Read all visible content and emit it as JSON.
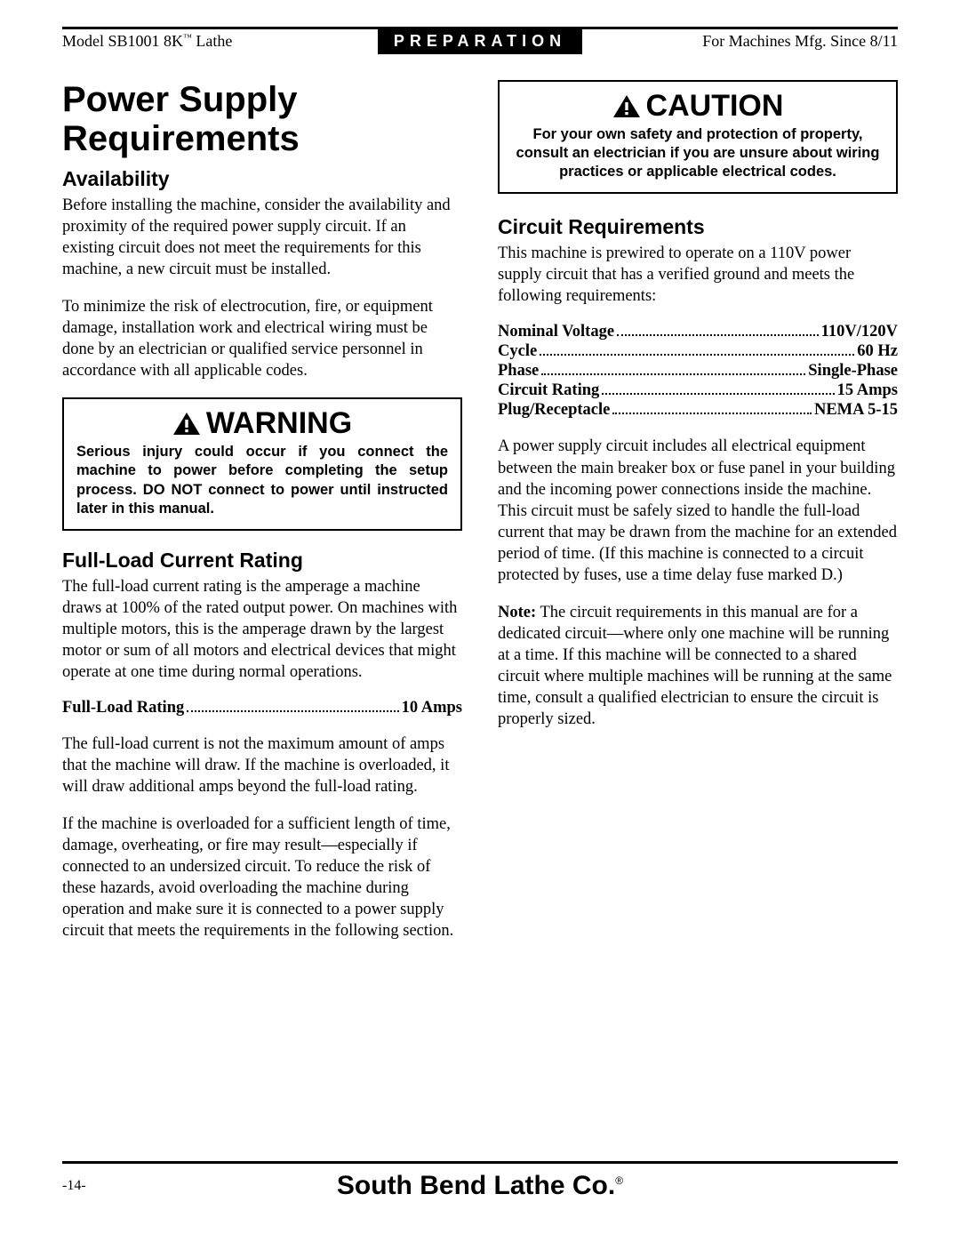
{
  "header": {
    "left_prefix": "Model SB1001 8K",
    "left_suffix": " Lathe",
    "center": "PREPARATION",
    "right": "For Machines Mfg. Since 8/11"
  },
  "left_col": {
    "title": "Power Supply Requirements",
    "availability": {
      "heading": "Availability",
      "p1": "Before installing the machine, consider the availability and proximity of the required power supply circuit. If an existing circuit does not meet the requirements for this machine, a new circuit must be installed.",
      "p2": "To minimize the risk of electrocution, fire, or equipment damage, installation work and electrical wiring must be done by an electrician or qualified service personnel in accordance with all applicable codes."
    },
    "warning": {
      "title": "WARNING",
      "body": "Serious injury could occur if you connect the machine to power before completing the setup process. DO NOT connect to power until instructed later in this manual."
    },
    "full_load": {
      "heading": "Full-Load Current Rating",
      "p1": "The full-load current rating is the amperage a machine draws at 100% of the rated output power. On machines with multiple motors, this is the amperage drawn by the largest motor or sum of all motors and electrical devices that might operate at one time during normal operations.",
      "spec_label": "Full-Load Rating",
      "spec_value": "10 Amps",
      "p2": "The full-load current is not the maximum amount of amps that the machine will draw. If the machine is overloaded, it will draw additional amps beyond the full-load rating.",
      "p3": "If the machine is overloaded for a sufficient length of time, damage, overheating, or fire may result—especially if connected to an undersized circuit. To reduce the risk of these hazards, avoid overloading the machine during operation and make sure it is connected to a power supply circuit that meets the requirements in the following section."
    }
  },
  "right_col": {
    "caution": {
      "title": "CAUTION",
      "body": "For your own safety and protection of property, consult an electrician if you are unsure about wiring practices or applicable electrical codes."
    },
    "circuit": {
      "heading": "Circuit Requirements",
      "intro": "This machine is prewired to operate on a 110V power supply circuit that has a verified ground and meets the following requirements:",
      "specs": [
        {
          "label": "Nominal Voltage",
          "value": "110V/120V"
        },
        {
          "label": "Cycle",
          "value": "60 Hz"
        },
        {
          "label": "Phase",
          "value": "Single-Phase"
        },
        {
          "label": "Circuit Rating",
          "value": "15 Amps"
        },
        {
          "label": "Plug/Receptacle",
          "value": "NEMA 5-15"
        }
      ],
      "p1": "A power supply circuit includes all electrical equipment between the main breaker box or fuse panel in your building and the incoming power connections inside the machine. This circuit must be safely sized to handle the full-load current that may be drawn from the machine for an extended period of time. (If this machine is connected to a circuit protected by fuses, use a time delay fuse marked D.)",
      "note_label": "Note:",
      "note_body": " The circuit requirements in this manual are for a dedicated circuit—where only one machine will be running at a time. If this machine will be connected to a shared circuit where multiple machines will be running at the same time, consult a qualified electrician to ensure the circuit is properly sized."
    }
  },
  "footer": {
    "page": "-14-",
    "brand": "South Bend Lathe Co."
  }
}
